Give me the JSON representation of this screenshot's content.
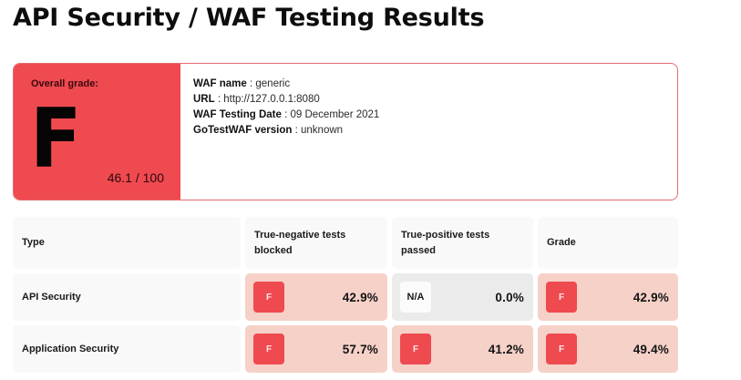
{
  "page": {
    "title": "API Security / WAF Testing Results"
  },
  "summary": {
    "overall_label": "Overall grade:",
    "grade": "F",
    "score": "46.1 / 100",
    "grade_color": "#ef4a50",
    "info": [
      {
        "label": "WAF name",
        "sep": " : ",
        "value": "generic"
      },
      {
        "label": "URL",
        "sep": " : ",
        "value": "http://127.0.0.1:8080"
      },
      {
        "label": "WAF Testing Date",
        "sep": " : ",
        "value": "09 December 2021"
      },
      {
        "label": "GoTestWAF version",
        "sep": " : ",
        "value": "unknown"
      }
    ]
  },
  "table": {
    "headers": [
      "Type",
      "True-negative tests blocked",
      "True-positive tests passed",
      "Grade"
    ],
    "rows": [
      {
        "type": "API Security",
        "true_negative": {
          "grade": "F",
          "value": "42.9%"
        },
        "true_positive": {
          "grade": "N/A",
          "value": "0.0%"
        },
        "grade": {
          "grade": "F",
          "value": "42.9%"
        }
      },
      {
        "type": "Application Security",
        "true_negative": {
          "grade": "F",
          "value": "57.7%"
        },
        "true_positive": {
          "grade": "F",
          "value": "41.2%"
        },
        "grade": {
          "grade": "F",
          "value": "49.4%"
        }
      }
    ]
  },
  "colors": {
    "fail_red": "#ef4a50",
    "fail_cell_bg": "#f6d1c8",
    "na_cell_bg": "#ebebeb",
    "header_bg": "#f9f9f9",
    "card_border": "#e46b72"
  }
}
